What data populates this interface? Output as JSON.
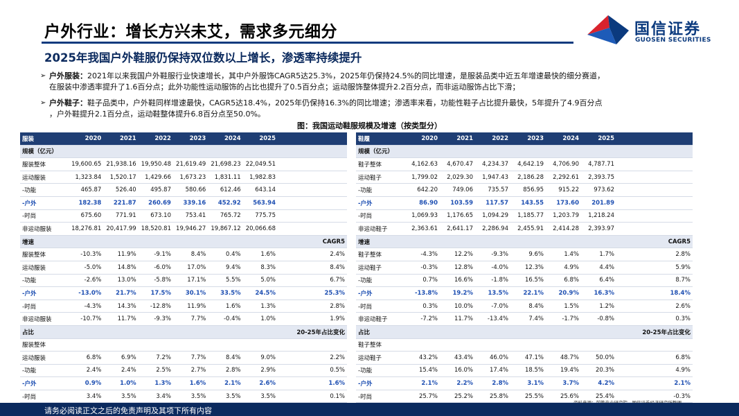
{
  "header": {
    "title": "户外行业：增长方兴未艾，需求多元细分",
    "logo_cn": "国信证券",
    "logo_en": "GUOSEN SECURITIES",
    "subtitle": "2025年我国户外鞋服仍保持双位数以上增长，渗透率持续提升"
  },
  "bullets": [
    {
      "label": "户外服装：",
      "line1": "2021年以来我国户外鞋服行业快速增长，其中户外服饰CAGR5达25.3%，2025年仍保持24.5%的同比增速，是服装品类中近五年增速最快的细分赛道，",
      "line2": "在服装中渗透率提升了1.6百分点；此外功能性运动服饰的占比也提升了0.5百分点；运动服饰整体提升2.2百分点，而非运动服饰占比下滑；"
    },
    {
      "label": "户外鞋子：",
      "line1": "鞋子品类中，户外鞋同样增速最快，CAGR5达18.4%，2025年仍保持16.3%的同比增速；渗透率来看，功能性鞋子占比提升最快，5年提升了4.9百分点",
      "line2": "，户外鞋提升2.1百分点，运动鞋整体提升6.8百分点至50.0%。"
    }
  ],
  "figure_title": "图：我国运动鞋服规模及增速（按类型分）",
  "apparel": {
    "header": [
      "服装",
      "2020",
      "2021",
      "2022",
      "2023",
      "2024",
      "2025",
      ""
    ],
    "rows": [
      [
        "规模（亿元）",
        "",
        "",
        "",
        "",
        "",
        "",
        ""
      ],
      [
        "服装整体",
        "19,600.65",
        "21,938.16",
        "19,950.48",
        "21,619.49",
        "21,698.23",
        "22,049.51",
        ""
      ],
      [
        "运动服装",
        "1,323.84",
        "1,520.17",
        "1,429.66",
        "1,673.23",
        "1,831.11",
        "1,982.83",
        ""
      ],
      [
        "-功能",
        "465.87",
        "526.40",
        "495.87",
        "580.66",
        "612.46",
        "643.14",
        ""
      ],
      [
        "-户外",
        "182.38",
        "221.87",
        "260.69",
        "339.16",
        "452.92",
        "563.94",
        ""
      ],
      [
        "-时尚",
        "675.60",
        "771.91",
        "673.10",
        "753.41",
        "765.72",
        "775.75",
        ""
      ],
      [
        "非运动服装",
        "18,276.81",
        "20,417.99",
        "18,520.81",
        "19,946.27",
        "19,867.12",
        "20,066.68",
        ""
      ],
      [
        "增速",
        "",
        "",
        "",
        "",
        "",
        "",
        "CAGR5"
      ],
      [
        "服装整体",
        "-10.3%",
        "11.9%",
        "-9.1%",
        "8.4%",
        "0.4%",
        "1.6%",
        "2.4%"
      ],
      [
        "运动服装",
        "-5.0%",
        "14.8%",
        "-6.0%",
        "17.0%",
        "9.4%",
        "8.3%",
        "8.4%"
      ],
      [
        "-功能",
        "-2.6%",
        "13.0%",
        "-5.8%",
        "17.1%",
        "5.5%",
        "5.0%",
        "6.7%"
      ],
      [
        "-户外",
        "-13.0%",
        "21.7%",
        "17.5%",
        "30.1%",
        "33.5%",
        "24.5%",
        "25.3%"
      ],
      [
        "-时尚",
        "-4.3%",
        "14.3%",
        "-12.8%",
        "11.9%",
        "1.6%",
        "1.3%",
        "2.8%"
      ],
      [
        "非运动服装",
        "-10.7%",
        "11.7%",
        "-9.3%",
        "7.7%",
        "-0.4%",
        "1.0%",
        "1.9%"
      ],
      [
        "占比",
        "",
        "",
        "",
        "",
        "",
        "",
        "20-25年占比变化"
      ],
      [
        "服装整体",
        "",
        "",
        "",
        "",
        "",
        "",
        ""
      ],
      [
        "运动服装",
        "6.8%",
        "6.9%",
        "7.2%",
        "7.7%",
        "8.4%",
        "9.0%",
        "2.2%"
      ],
      [
        "-功能",
        "2.4%",
        "2.4%",
        "2.5%",
        "2.7%",
        "2.8%",
        "2.9%",
        "0.5%"
      ],
      [
        "-户外",
        "0.9%",
        "1.0%",
        "1.3%",
        "1.6%",
        "2.1%",
        "2.6%",
        "1.6%"
      ],
      [
        "-时尚",
        "3.4%",
        "3.5%",
        "3.4%",
        "3.5%",
        "3.5%",
        "3.5%",
        "0.1%"
      ],
      [
        "非运动服装",
        "93.2%",
        "93.1%",
        "92.8%",
        "92.3%",
        "91.6%",
        "91.0%",
        "-2.2%"
      ]
    ]
  },
  "footwear": {
    "header": [
      "鞋履",
      "2020",
      "2021",
      "2022",
      "2023",
      "2024",
      "2025",
      ""
    ],
    "rows": [
      [
        "规模（亿元）",
        "",
        "",
        "",
        "",
        "",
        "",
        ""
      ],
      [
        "鞋子整体",
        "4,162.63",
        "4,670.47",
        "4,234.37",
        "4,642.19",
        "4,706.90",
        "4,787.71",
        ""
      ],
      [
        "运动鞋子",
        "1,799.02",
        "2,029.30",
        "1,947.43",
        "2,186.28",
        "2,292.61",
        "2,393.75",
        ""
      ],
      [
        "-功能",
        "642.20",
        "749.06",
        "735.57",
        "856.95",
        "915.22",
        "973.62",
        ""
      ],
      [
        "-户外",
        "86.90",
        "103.59",
        "117.57",
        "143.55",
        "173.60",
        "201.89",
        ""
      ],
      [
        "-时尚",
        "1,069.93",
        "1,176.65",
        "1,094.29",
        "1,185.77",
        "1,203.79",
        "1,218.24",
        ""
      ],
      [
        "非运动鞋子",
        "2,363.61",
        "2,641.17",
        "2,286.94",
        "2,455.91",
        "2,414.28",
        "2,393.97",
        ""
      ],
      [
        "增速",
        "",
        "",
        "",
        "",
        "",
        "",
        "CAGR5"
      ],
      [
        "鞋子整体",
        "-4.3%",
        "12.2%",
        "-9.3%",
        "9.6%",
        "1.4%",
        "1.7%",
        "2.8%"
      ],
      [
        "运动鞋子",
        "-0.3%",
        "12.8%",
        "-4.0%",
        "12.3%",
        "4.9%",
        "4.4%",
        "5.9%"
      ],
      [
        "-功能",
        "0.7%",
        "16.6%",
        "-1.8%",
        "16.5%",
        "6.8%",
        "6.4%",
        "8.7%"
      ],
      [
        "-户外",
        "-13.8%",
        "19.2%",
        "13.5%",
        "22.1%",
        "20.9%",
        "16.3%",
        "18.4%"
      ],
      [
        "-时尚",
        "0.3%",
        "10.0%",
        "-7.0%",
        "8.4%",
        "1.5%",
        "1.2%",
        "2.6%"
      ],
      [
        "非运动鞋子",
        "-7.2%",
        "11.7%",
        "-13.4%",
        "7.4%",
        "-1.7%",
        "-0.8%",
        "0.3%"
      ],
      [
        "占比",
        "",
        "",
        "",
        "",
        "",
        "",
        "20-25年占比变化"
      ],
      [
        "鞋子整体",
        "",
        "",
        "",
        "",
        "",
        "",
        ""
      ],
      [
        "运动鞋子",
        "43.2%",
        "43.4%",
        "46.0%",
        "47.1%",
        "48.7%",
        "50.0%",
        "6.8%"
      ],
      [
        "-功能",
        "15.4%",
        "16.0%",
        "17.4%",
        "18.5%",
        "19.4%",
        "20.3%",
        "4.9%"
      ],
      [
        "-户外",
        "2.1%",
        "2.2%",
        "2.8%",
        "3.1%",
        "3.7%",
        "4.2%",
        "2.1%"
      ],
      [
        "-时尚",
        "25.7%",
        "25.2%",
        "25.8%",
        "25.5%",
        "25.6%",
        "25.4%",
        "-0.3%"
      ],
      [
        "非运动鞋子",
        "56.8%",
        "56.6%",
        "54.0%",
        "52.9%",
        "51.3%",
        "50.0%",
        "-6.8%"
      ]
    ]
  },
  "source_note": "资料来源：前瞻产业研究院，国信证券经济研究所整理",
  "footer_text": "请务必阅读正文之后的免责声明及其项下所有内容",
  "colors": {
    "brand_navy": "#0b2a5e",
    "header_fill": "#1f3e74",
    "section_fill": "#e3e8f2",
    "highlight_blue": "#1e4fb2",
    "logo_red": "#d9232d"
  }
}
